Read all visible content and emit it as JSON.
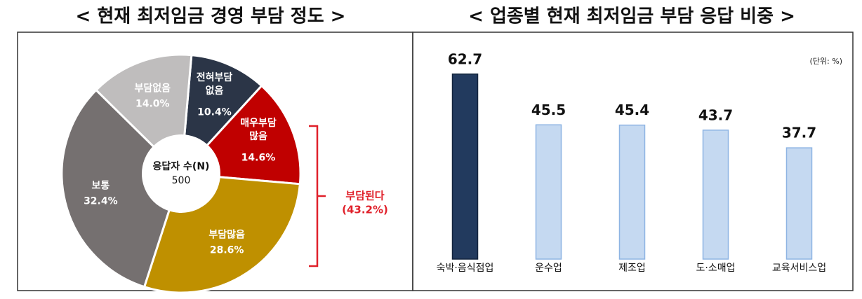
{
  "chart_data": [
    {
      "type": "pie",
      "title": "< 현재 최저임금 경영 부담 정도 >",
      "categories": [
        "전혀부담\n없음",
        "매우부담\n많음",
        "부담많음",
        "보통",
        "부담없음"
      ],
      "values": [
        10.4,
        14.6,
        28.6,
        32.4,
        14.0
      ],
      "value_labels": [
        "10.4%",
        "14.6%",
        "28.6%",
        "32.4%",
        "14.0%"
      ],
      "colors": [
        "#2b3547",
        "#c00000",
        "#bf9000",
        "#757070",
        "#bfbdbd"
      ],
      "center_label": "응답자 수(N)",
      "center_value": 500,
      "annotation": {
        "label": "부담된다",
        "sublabel": "(43.2%)",
        "color": "#e0202a"
      }
    },
    {
      "type": "bar",
      "title": "< 업종별 현재 최저임금 부담 응답 비중 >",
      "unit_label": "(단위: %)",
      "categories": [
        "숙박·음식점업",
        "운수업",
        "제조업",
        "도·소매업",
        "교육서비스업"
      ],
      "values": [
        62.7,
        45.5,
        45.4,
        43.7,
        37.7
      ],
      "colors": [
        "#223a5e",
        "#c5d9f1",
        "#c5d9f1",
        "#c5d9f1",
        "#c5d9f1"
      ],
      "ylim": [
        0,
        70
      ]
    }
  ]
}
